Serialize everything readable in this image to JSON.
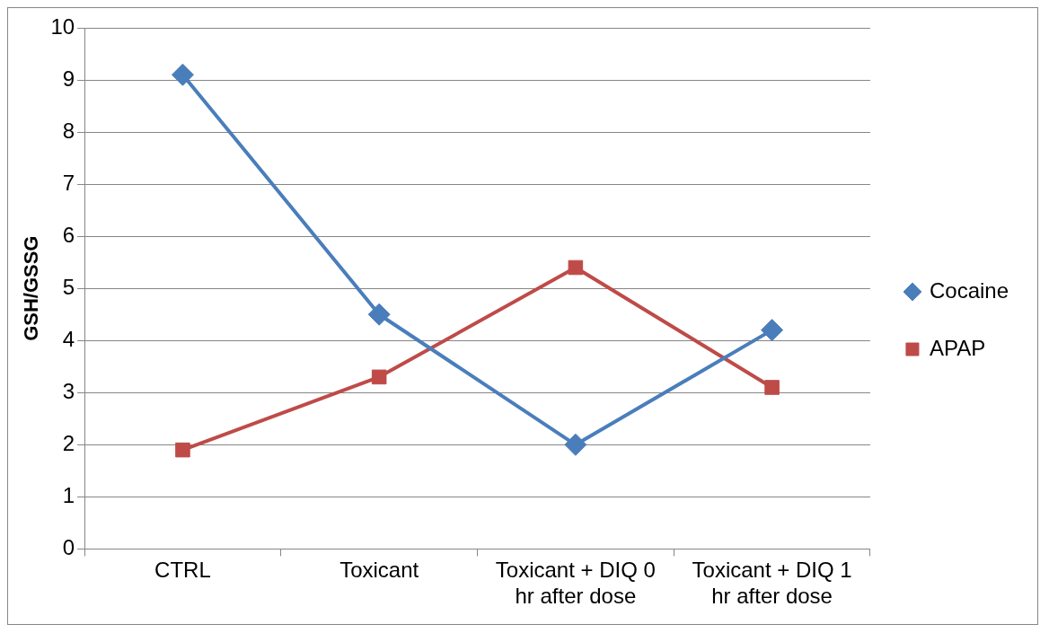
{
  "chart_data": {
    "type": "line",
    "ylabel": "GSH/GSSG",
    "categories": [
      "CTRL",
      "Toxicant",
      "Toxicant + DIQ 0 hr after dose",
      "Toxicant + DIQ 1 hr after dose"
    ],
    "series": [
      {
        "name": "Cocaine",
        "color": "#4a7ebb",
        "marker": "diamond",
        "values": [
          9.1,
          4.5,
          2.0,
          4.2
        ]
      },
      {
        "name": "APAP",
        "color": "#be4b48",
        "marker": "square",
        "values": [
          1.9,
          3.3,
          5.4,
          3.1
        ]
      }
    ],
    "ylim": [
      0,
      10
    ],
    "yticks": [
      0,
      1,
      2,
      3,
      4,
      5,
      6,
      7,
      8,
      9,
      10
    ],
    "grid": "y",
    "legend": "right",
    "line_style": "solid"
  }
}
